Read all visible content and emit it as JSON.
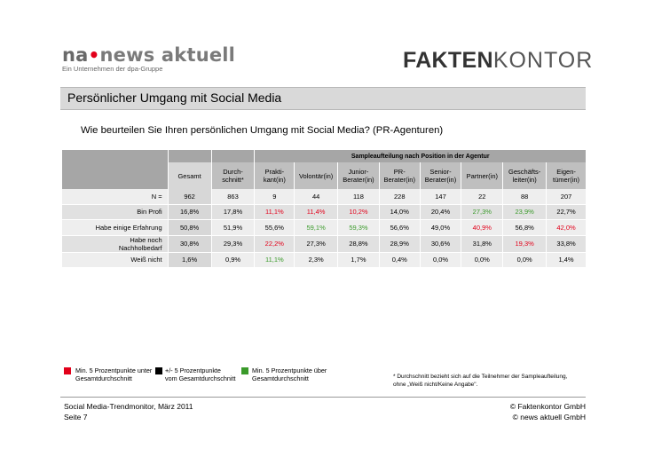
{
  "logos": {
    "na_part1": "na",
    "na_dot": "•",
    "na_part2": "news aktuell",
    "na_tagline": "Ein Unternehmen der dpa-Gruppe",
    "fk_part1": "FAKTEN",
    "fk_part2": "KONTOR"
  },
  "title": "Persönlicher Umgang mit Social Media",
  "question": "Wie beurteilen Sie Ihren persönlichen Umgang mit Social Media? (PR-Agenturen)",
  "table": {
    "group_header": "Sampleaufteilung nach Position in der Agentur",
    "columns": [
      {
        "label": "Gesamt"
      },
      {
        "label": "Durch-\nschnitt*"
      },
      {
        "label": "Prakti-\nkant(in)"
      },
      {
        "label": "Volontär(in)"
      },
      {
        "label": "Junior-\nBerater(in)"
      },
      {
        "label": "PR-\nBerater(in)"
      },
      {
        "label": "Senior-\nBerater(in)"
      },
      {
        "label": "Partner(in)"
      },
      {
        "label": "Geschäfts-\nleiter(in)"
      },
      {
        "label": "Eigen-\ntümer(in)"
      }
    ],
    "rows": [
      {
        "label": "N =",
        "values": [
          "962",
          "863",
          "9",
          "44",
          "118",
          "228",
          "147",
          "22",
          "88",
          "207"
        ],
        "colors": [
          "",
          "",
          "",
          "",
          "",
          "",
          "",
          "",
          "",
          ""
        ]
      },
      {
        "label": "Bin Profi",
        "values": [
          "16,8%",
          "17,8%",
          "11,1%",
          "11,4%",
          "10,2%",
          "14,0%",
          "20,4%",
          "27,3%",
          "23,9%",
          "22,7%"
        ],
        "colors": [
          "",
          "",
          "red",
          "red",
          "red",
          "",
          "",
          "green",
          "green",
          ""
        ]
      },
      {
        "label": "Habe einige Erfahrung",
        "values": [
          "50,8%",
          "51,9%",
          "55,6%",
          "59,1%",
          "59,3%",
          "56,6%",
          "49,0%",
          "40,9%",
          "56,8%",
          "42,0%"
        ],
        "colors": [
          "",
          "",
          "",
          "green",
          "green",
          "",
          "",
          "red",
          "",
          "red"
        ]
      },
      {
        "label": "Habe noch\nNachholbedarf",
        "values": [
          "30,8%",
          "29,3%",
          "22,2%",
          "27,3%",
          "28,8%",
          "28,9%",
          "30,6%",
          "31,8%",
          "19,3%",
          "33,8%"
        ],
        "colors": [
          "",
          "",
          "red",
          "",
          "",
          "",
          "",
          "",
          "red",
          ""
        ]
      },
      {
        "label": "Weiß nicht",
        "values": [
          "1,6%",
          "0,9%",
          "11,1%",
          "2,3%",
          "1,7%",
          "0,4%",
          "0,0%",
          "0,0%",
          "0,0%",
          "1,4%"
        ],
        "colors": [
          "",
          "",
          "green",
          "",
          "",
          "",
          "",
          "",
          "",
          ""
        ]
      }
    ]
  },
  "legend": [
    {
      "color": "#e2001a",
      "text": "Min. 5 Prozentpunkte unter\nGesamtdurchschnitt"
    },
    {
      "color": "#000000",
      "text": "+/- 5 Prozentpunkte\nvom Gesamtdurchschnitt"
    },
    {
      "color": "#3a9a2a",
      "text": "Min. 5 Prozentpunkte über\nGesamtdurchschnitt"
    }
  ],
  "footnote": "* Durchschnitt bezieht sich auf die Teilnehmer der Sampleaufteilung,\nohne „Weiß nicht/Keine Angabe\".",
  "footer": {
    "left_line1": "Social Media-Trendmonitor, März 2011",
    "left_line2": "Seite 7",
    "right_line1": "© Faktenkontor GmbH",
    "right_line2": "© news aktuell GmbH"
  }
}
